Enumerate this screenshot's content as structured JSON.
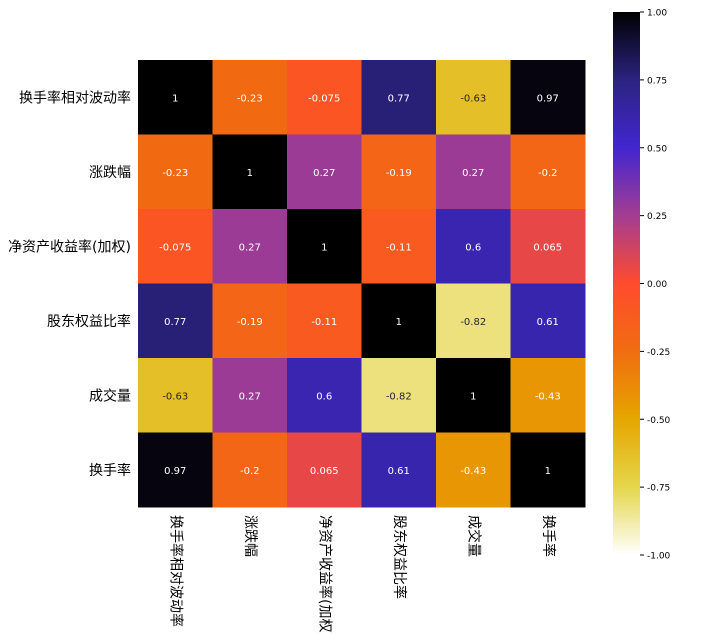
{
  "chart_data": {
    "type": "heatmap",
    "title": "",
    "rows": [
      "换手率相对波动率",
      "涨跌幅",
      "净资产收益率(加权)",
      "股东权益比率",
      "成交量",
      "换手率"
    ],
    "columns": [
      "换手率相对波动率",
      "涨跌幅",
      "净资产收益率(加权)",
      "股东权益比率",
      "成交量",
      "换手率"
    ],
    "values": [
      [
        1,
        -0.23,
        -0.075,
        0.77,
        -0.63,
        0.97
      ],
      [
        -0.23,
        1,
        0.27,
        -0.19,
        0.27,
        -0.2
      ],
      [
        -0.075,
        0.27,
        1,
        -0.11,
        0.6,
        0.065
      ],
      [
        0.77,
        -0.19,
        -0.11,
        1,
        -0.82,
        0.61
      ],
      [
        -0.63,
        0.27,
        0.6,
        -0.82,
        1,
        -0.43
      ],
      [
        0.97,
        -0.2,
        0.065,
        0.61,
        -0.43,
        1
      ]
    ],
    "value_labels": [
      [
        "1",
        "-0.23",
        "-0.075",
        "0.77",
        "-0.63",
        "0.97"
      ],
      [
        "-0.23",
        "1",
        "0.27",
        "-0.19",
        "0.27",
        "-0.2"
      ],
      [
        "-0.075",
        "0.27",
        "1",
        "-0.11",
        "0.6",
        "0.065"
      ],
      [
        "0.77",
        "-0.19",
        "-0.11",
        "1",
        "-0.82",
        "0.61"
      ],
      [
        "-0.63",
        "0.27",
        "0.6",
        "-0.82",
        "1",
        "-0.43"
      ],
      [
        "0.97",
        "-0.2",
        "0.065",
        "0.61",
        "-0.43",
        "1"
      ]
    ],
    "colorbar": {
      "vmin": -1.0,
      "vmax": 1.0,
      "ticks": [
        1.0,
        0.75,
        0.5,
        0.25,
        0.0,
        -0.25,
        -0.5,
        -0.75,
        -1.0
      ],
      "tick_labels": [
        "1.00",
        "0.75",
        "0.50",
        "0.25",
        "0.00",
        "-0.25",
        "-0.50",
        "-0.75",
        "-1.00"
      ],
      "colormap": "CMRmap_r",
      "stops": [
        "#ffffff",
        "#e5d64b",
        "#e5a600",
        "#f06d10",
        "#ff4b2d",
        "#a33d91",
        "#4226d0",
        "#2b2380",
        "#000000"
      ]
    }
  }
}
